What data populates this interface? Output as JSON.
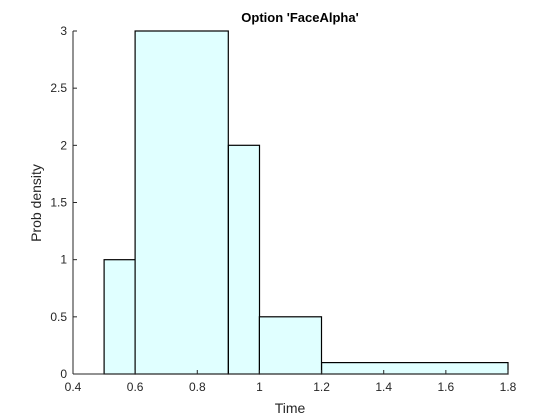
{
  "chart_data": {
    "type": "bar",
    "title": "Option 'FaceAlpha'",
    "xlabel": "Time",
    "ylabel": "Prob density",
    "xlim": [
      0.4,
      1.8
    ],
    "ylim": [
      0,
      3
    ],
    "xticks": [
      "0.4",
      "0.6",
      "0.8",
      "1",
      "1.2",
      "1.4",
      "1.6",
      "1.8"
    ],
    "yticks": [
      "0",
      "0.5",
      "1",
      "1.5",
      "2",
      "2.5",
      "3"
    ],
    "bins": [
      {
        "x0": 0.5,
        "x1": 0.6,
        "value": 1
      },
      {
        "x0": 0.6,
        "x1": 0.9,
        "value": 3
      },
      {
        "x0": 0.9,
        "x1": 1.0,
        "value": 2
      },
      {
        "x0": 1.0,
        "x1": 1.2,
        "value": 0.5
      },
      {
        "x0": 1.2,
        "x1": 1.8,
        "value": 0.1
      }
    ],
    "grid": false,
    "colors": {
      "bar_fill": "#e0ffff",
      "bar_edge": "#000000",
      "axis": "#262626"
    }
  }
}
